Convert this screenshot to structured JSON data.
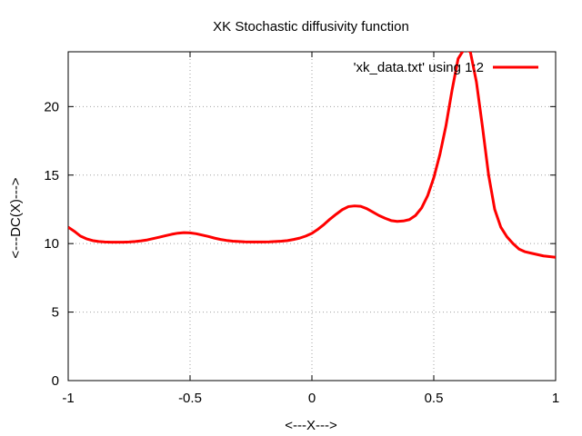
{
  "chart_data": {
    "type": "line",
    "title": "XK Stochastic diffusivity function",
    "xlabel": "<---X--->",
    "ylabel": "<---DC(X)--->",
    "xlim": [
      -1,
      1
    ],
    "ylim": [
      0,
      24
    ],
    "xticks": [
      -1,
      -0.5,
      0,
      0.5,
      1
    ],
    "xtick_labels": [
      "-1",
      "-0.5",
      "0",
      "0.5",
      "1"
    ],
    "yticks": [
      0,
      5,
      10,
      15,
      20
    ],
    "ytick_labels": [
      "0",
      "5",
      "10",
      "15",
      "20"
    ],
    "grid": true,
    "legend_position": "top-right",
    "colors": {
      "series": "#ff0000",
      "grid": "#a0a0a0",
      "axis": "#000000"
    },
    "series": [
      {
        "name": "'xk_data.txt' using 1:2",
        "color": "#ff0000",
        "x": [
          -1.0,
          -0.975,
          -0.95,
          -0.925,
          -0.9,
          -0.875,
          -0.85,
          -0.825,
          -0.8,
          -0.775,
          -0.75,
          -0.725,
          -0.7,
          -0.675,
          -0.65,
          -0.625,
          -0.6,
          -0.575,
          -0.55,
          -0.525,
          -0.5,
          -0.475,
          -0.45,
          -0.425,
          -0.4,
          -0.375,
          -0.35,
          -0.325,
          -0.3,
          -0.275,
          -0.25,
          -0.225,
          -0.2,
          -0.175,
          -0.15,
          -0.125,
          -0.1,
          -0.075,
          -0.05,
          -0.025,
          0.0,
          0.025,
          0.05,
          0.075,
          0.1,
          0.125,
          0.15,
          0.175,
          0.2,
          0.225,
          0.25,
          0.275,
          0.3,
          0.325,
          0.35,
          0.375,
          0.4,
          0.425,
          0.45,
          0.475,
          0.5,
          0.525,
          0.55,
          0.575,
          0.6,
          0.625,
          0.65,
          0.675,
          0.7,
          0.725,
          0.75,
          0.775,
          0.8,
          0.825,
          0.85,
          0.875,
          0.9,
          0.925,
          0.95,
          0.975,
          1.0
        ],
        "y": [
          11.2,
          10.9,
          10.55,
          10.35,
          10.22,
          10.15,
          10.12,
          10.1,
          10.1,
          10.1,
          10.12,
          10.15,
          10.2,
          10.27,
          10.37,
          10.47,
          10.58,
          10.68,
          10.76,
          10.8,
          10.78,
          10.72,
          10.62,
          10.52,
          10.4,
          10.3,
          10.23,
          10.18,
          10.15,
          10.13,
          10.12,
          10.12,
          10.12,
          10.13,
          10.15,
          10.18,
          10.22,
          10.3,
          10.4,
          10.55,
          10.75,
          11.05,
          11.4,
          11.8,
          12.15,
          12.48,
          12.7,
          12.75,
          12.72,
          12.55,
          12.3,
          12.05,
          11.85,
          11.68,
          11.62,
          11.65,
          11.75,
          12.05,
          12.6,
          13.5,
          14.8,
          16.5,
          18.6,
          21.2,
          23.5,
          24.2,
          24.0,
          21.8,
          18.5,
          15.0,
          12.5,
          11.2,
          10.5,
          10.0,
          9.6,
          9.4,
          9.3,
          9.2,
          9.1,
          9.05,
          9.0
        ]
      }
    ]
  }
}
